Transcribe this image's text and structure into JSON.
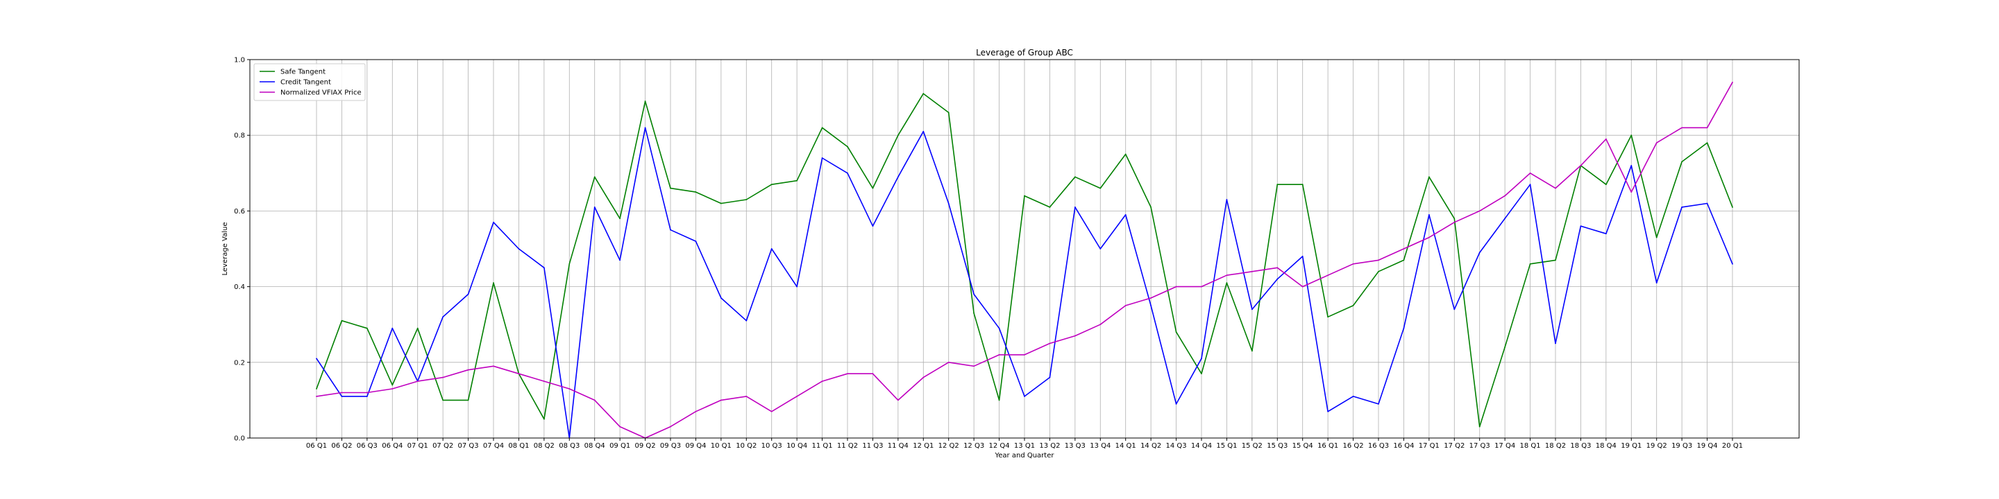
{
  "chart_data": {
    "type": "line",
    "title": "Leverage of Group ABC",
    "xlabel": "Year and Quarter",
    "ylabel": "Leverage Value",
    "ylim": [
      0,
      1
    ],
    "yticks": [
      "0.0",
      "0.2",
      "0.4",
      "0.6",
      "0.8",
      "1.0"
    ],
    "grid": true,
    "legend_position": "top-left",
    "categories": [
      "06 Q1",
      "06 Q2",
      "06 Q3",
      "06 Q4",
      "07 Q1",
      "07 Q2",
      "07 Q3",
      "07 Q4",
      "08 Q1",
      "08 Q2",
      "08 Q3",
      "08 Q4",
      "09 Q1",
      "09 Q2",
      "09 Q3",
      "09 Q4",
      "10 Q1",
      "10 Q2",
      "10 Q3",
      "10 Q4",
      "11 Q1",
      "11 Q2",
      "11 Q3",
      "11 Q4",
      "12 Q1",
      "12 Q2",
      "12 Q3",
      "12 Q4",
      "13 Q1",
      "13 Q2",
      "13 Q3",
      "13 Q4",
      "14 Q1",
      "14 Q2",
      "14 Q3",
      "14 Q4",
      "15 Q1",
      "15 Q2",
      "15 Q3",
      "15 Q4",
      "16 Q1",
      "16 Q2",
      "16 Q3",
      "16 Q4",
      "17 Q1",
      "17 Q2",
      "17 Q3",
      "17 Q4",
      "18 Q1",
      "18 Q2",
      "18 Q3",
      "18 Q4",
      "19 Q1",
      "19 Q2",
      "19 Q3",
      "19 Q4",
      "20 Q1"
    ],
    "series": [
      {
        "name": "Safe Tangent",
        "color": "#008000",
        "values": [
          0.13,
          0.31,
          0.29,
          0.14,
          0.29,
          0.1,
          0.1,
          0.41,
          0.17,
          0.05,
          0.46,
          0.69,
          0.58,
          0.89,
          0.66,
          0.65,
          0.62,
          0.63,
          0.67,
          0.68,
          0.82,
          0.77,
          0.66,
          0.8,
          0.91,
          0.86,
          0.33,
          0.1,
          0.64,
          0.61,
          0.69,
          0.66,
          0.75,
          0.61,
          0.28,
          0.17,
          0.41,
          0.23,
          0.67,
          0.67,
          0.32,
          0.35,
          0.44,
          0.47,
          0.69,
          0.58,
          0.03,
          0.24,
          0.46,
          0.47,
          0.72,
          0.67,
          0.8,
          0.53,
          0.73,
          0.78,
          0.61
        ]
      },
      {
        "name": "Credit Tangent",
        "color": "#0000ff",
        "values": [
          0.21,
          0.11,
          0.11,
          0.29,
          0.15,
          0.32,
          0.38,
          0.57,
          0.5,
          0.45,
          0.0,
          0.61,
          0.47,
          0.82,
          0.55,
          0.52,
          0.37,
          0.31,
          0.5,
          0.4,
          0.74,
          0.7,
          0.56,
          0.69,
          0.81,
          0.62,
          0.38,
          0.29,
          0.11,
          0.16,
          0.61,
          0.5,
          0.59,
          0.35,
          0.09,
          0.21,
          0.63,
          0.34,
          0.42,
          0.48,
          0.07,
          0.11,
          0.09,
          0.29,
          0.59,
          0.34,
          0.49,
          0.58,
          0.67,
          0.25,
          0.56,
          0.54,
          0.72,
          0.41,
          0.61,
          0.62,
          0.46
        ]
      },
      {
        "name": "Normalized VFIAX Price",
        "color": "#bf00bf",
        "values": [
          0.11,
          0.12,
          0.12,
          0.13,
          0.15,
          0.16,
          0.18,
          0.19,
          0.17,
          0.15,
          0.13,
          0.1,
          0.03,
          0.0,
          0.03,
          0.07,
          0.1,
          0.11,
          0.07,
          0.11,
          0.15,
          0.17,
          0.17,
          0.1,
          0.16,
          0.2,
          0.19,
          0.22,
          0.22,
          0.25,
          0.27,
          0.3,
          0.35,
          0.37,
          0.4,
          0.4,
          0.43,
          0.44,
          0.45,
          0.4,
          0.43,
          0.46,
          0.47,
          0.5,
          0.53,
          0.57,
          0.6,
          0.64,
          0.7,
          0.66,
          0.72,
          0.79,
          0.65,
          0.78,
          0.82,
          0.82,
          0.94
        ]
      }
    ]
  }
}
